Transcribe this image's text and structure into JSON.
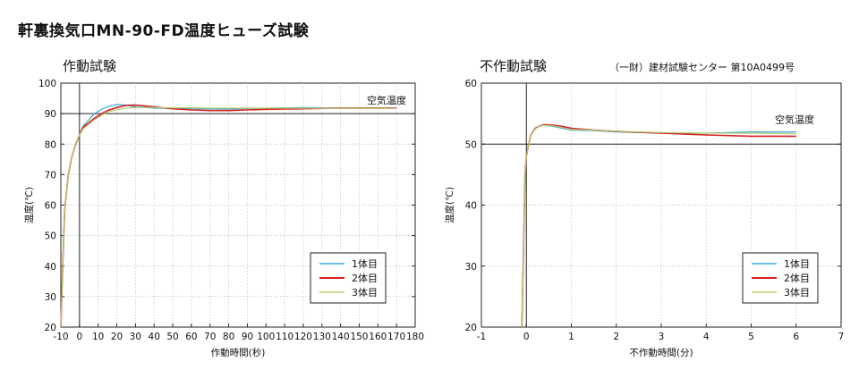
{
  "page_title": "軒裏換気口MN-90-FD温度ヒューズ試験",
  "chart_data": [
    {
      "type": "line",
      "title": "作動試験",
      "subtitle": "",
      "xlabel": "作動時間(秒)",
      "ylabel": "温度(℃)",
      "xlim": [
        -10,
        180
      ],
      "ylim": [
        20,
        100
      ],
      "xticks": [
        -10,
        0,
        10,
        20,
        30,
        40,
        50,
        60,
        70,
        80,
        90,
        100,
        110,
        120,
        130,
        140,
        150,
        160,
        170,
        180
      ],
      "yticks": [
        20,
        30,
        40,
        50,
        60,
        70,
        80,
        90,
        100
      ],
      "grid": true,
      "reference_line": {
        "y": 90,
        "label": "空気温度"
      },
      "vertical_line": {
        "x": 0
      },
      "legend_position": "bottom-right",
      "series": [
        {
          "name": "1体目",
          "color": "#3aa8d8",
          "x": [
            -10,
            -9,
            -8,
            -6,
            -4,
            -2,
            0,
            2,
            5,
            8,
            12,
            15,
            20,
            25,
            30,
            40,
            50,
            60,
            80,
            100,
            120,
            140,
            160,
            170
          ],
          "y": [
            20,
            40,
            58,
            70,
            76,
            80,
            83,
            86,
            88,
            90,
            91.5,
            92.3,
            93,
            92.8,
            92.2,
            91.8,
            91.8,
            91.6,
            91.5,
            91.8,
            92,
            91.8,
            91.8,
            91.8
          ]
        },
        {
          "name": "2体目",
          "color": "#d42020",
          "x": [
            -10,
            -9,
            -8,
            -6,
            -4,
            -2,
            0,
            2,
            5,
            8,
            12,
            15,
            20,
            25,
            30,
            40,
            50,
            60,
            70,
            80,
            90,
            100,
            110,
            120,
            130,
            140,
            150,
            160,
            170
          ],
          "y": [
            20,
            40,
            58,
            70,
            76,
            80,
            83,
            85.5,
            87,
            88.5,
            90,
            91,
            92,
            92.7,
            92.8,
            92.2,
            91.6,
            91.2,
            91,
            91,
            91.2,
            91.4,
            91.5,
            91.6,
            91.7,
            91.8,
            91.8,
            91.8,
            91.8
          ]
        },
        {
          "name": "3体目",
          "color": "#b8cc70",
          "x": [
            -10,
            -9,
            -8,
            -6,
            -4,
            -2,
            0,
            2,
            5,
            8,
            12,
            15,
            20,
            25,
            30,
            40,
            50,
            60,
            70,
            80,
            100,
            120,
            140,
            160,
            170
          ],
          "y": [
            20,
            40,
            58,
            70,
            76,
            80,
            83,
            85,
            86.5,
            88,
            89.5,
            90.5,
            91.3,
            91.8,
            92,
            92,
            91.9,
            91.9,
            91.8,
            91.8,
            91.8,
            91.8,
            91.7,
            91.7,
            91.7
          ]
        }
      ]
    },
    {
      "type": "line",
      "title": "不作動試験",
      "subtitle": "（一財）建材試験センター 第10A0499号",
      "xlabel": "不作動時間(分)",
      "ylabel": "温度(℃)",
      "xlim": [
        -1,
        7
      ],
      "ylim": [
        20,
        60
      ],
      "xticks": [
        -1,
        0,
        1,
        2,
        3,
        4,
        5,
        6,
        7
      ],
      "yticks": [
        20,
        30,
        40,
        50,
        60
      ],
      "grid": true,
      "reference_line": {
        "y": 50,
        "label": "空気温度"
      },
      "vertical_line": {
        "x": 0
      },
      "legend_position": "bottom-right",
      "series": [
        {
          "name": "1体目",
          "color": "#3aa8d8",
          "x": [
            -0.1,
            -0.07,
            -0.03,
            0,
            0.05,
            0.1,
            0.2,
            0.3,
            0.4,
            0.6,
            0.8,
            1,
            1.5,
            2,
            3,
            4,
            5,
            6
          ],
          "y": [
            20,
            30,
            45,
            48,
            50,
            51.5,
            52.5,
            53,
            53.1,
            52.9,
            52.6,
            52.3,
            52.2,
            52,
            51.8,
            51.8,
            52,
            52
          ]
        },
        {
          "name": "2体目",
          "color": "#d42020",
          "x": [
            -0.1,
            -0.07,
            -0.03,
            0,
            0.05,
            0.1,
            0.2,
            0.3,
            0.4,
            0.6,
            0.8,
            1,
            1.5,
            2,
            3,
            4,
            5,
            6
          ],
          "y": [
            20,
            30,
            45,
            48,
            50,
            51.5,
            52.6,
            53,
            53.2,
            53.1,
            52.9,
            52.6,
            52.3,
            52.1,
            51.8,
            51.5,
            51.3,
            51.3
          ]
        },
        {
          "name": "3体目",
          "color": "#b8cc70",
          "x": [
            -0.1,
            -0.07,
            -0.03,
            0,
            0.05,
            0.1,
            0.2,
            0.3,
            0.4,
            0.6,
            0.8,
            1,
            1.5,
            2,
            3,
            4,
            5,
            6
          ],
          "y": [
            20,
            30,
            45,
            48,
            50,
            51.5,
            52.5,
            53,
            53.1,
            53,
            52.7,
            52.4,
            52.3,
            52.1,
            51.9,
            51.8,
            51.8,
            51.7
          ]
        }
      ]
    }
  ]
}
